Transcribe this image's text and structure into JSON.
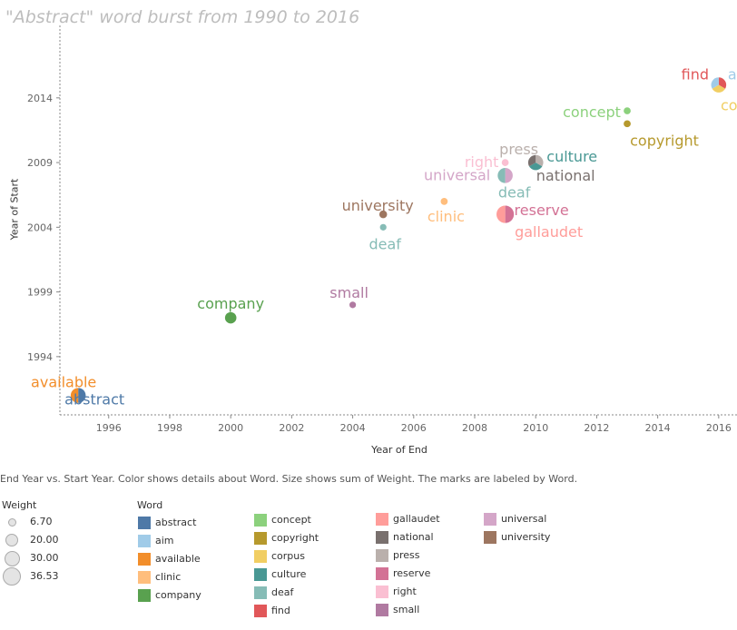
{
  "title": "\"Abstract\" word burst from 1990 to 2016",
  "caption": "End Year vs. Start Year.  Color shows details about Word.  Size shows sum of Weight.  The marks are labeled by Word.",
  "legend": {
    "weight_title": "Weight",
    "weight_items": [
      {
        "label": "6.70",
        "value": 6.7
      },
      {
        "label": "20.00",
        "value": 20.0
      },
      {
        "label": "30.00",
        "value": 30.0
      },
      {
        "label": "36.53",
        "value": 36.53
      }
    ],
    "word_title": "Word",
    "word_items": [
      {
        "label": "abstract",
        "color": "#4e79a7"
      },
      {
        "label": "aim",
        "color": "#a0cbe8"
      },
      {
        "label": "available",
        "color": "#f28e2b"
      },
      {
        "label": "clinic",
        "color": "#ffbe7d"
      },
      {
        "label": "company",
        "color": "#59a14f"
      },
      {
        "label": "concept",
        "color": "#8cd17d"
      },
      {
        "label": "copyright",
        "color": "#b6992d"
      },
      {
        "label": "corpus",
        "color": "#f1ce63"
      },
      {
        "label": "culture",
        "color": "#499894"
      },
      {
        "label": "deaf",
        "color": "#86bcb6"
      },
      {
        "label": "find",
        "color": "#e15759"
      },
      {
        "label": "gallaudet",
        "color": "#ff9d9a"
      },
      {
        "label": "national",
        "color": "#79706e"
      },
      {
        "label": "press",
        "color": "#bab0ac"
      },
      {
        "label": "reserve",
        "color": "#d37295"
      },
      {
        "label": "right",
        "color": "#fabfd2"
      },
      {
        "label": "small",
        "color": "#b07aa1"
      },
      {
        "label": "universal",
        "color": "#d4a6c8"
      },
      {
        "label": "university",
        "color": "#9d7660"
      }
    ]
  },
  "chart_data": {
    "type": "scatter",
    "title": "\"Abstract\" word burst from 1990 to 2016",
    "xlabel": "Year of End",
    "ylabel": "Year of Start",
    "xlim": [
      1994.4,
      2016.6
    ],
    "ylim": [
      1989.5,
      2019.6
    ],
    "xticks": [
      1996,
      1998,
      2000,
      2002,
      2004,
      2006,
      2008,
      2010,
      2012,
      2014,
      2016
    ],
    "yticks": [
      1994,
      1999,
      2004,
      2009,
      2014
    ],
    "points": [
      {
        "x": 1995,
        "y": 1991,
        "weight": 30,
        "words": [
          "abstract",
          "available"
        ],
        "labels": [
          {
            "text": "available",
            "color": "#f28e2b",
            "dx": -16,
            "dy": -9
          },
          {
            "text": "abstract",
            "color": "#4e79a7",
            "dx": 18,
            "dy": 10
          }
        ]
      },
      {
        "x": 2000,
        "y": 1997,
        "weight": 20,
        "words": [
          "company"
        ],
        "labels": [
          {
            "text": "company",
            "color": "#59a14f",
            "dx": 0,
            "dy": -10
          }
        ]
      },
      {
        "x": 2004,
        "y": 1998,
        "weight": 6.7,
        "words": [
          "small"
        ],
        "labels": [
          {
            "text": "small",
            "color": "#b07aa1",
            "dx": -4,
            "dy": -8
          }
        ]
      },
      {
        "x": 2005,
        "y": 2004,
        "weight": 6.7,
        "words": [
          "deaf"
        ],
        "labels": [
          {
            "text": "deaf",
            "color": "#86bcb6",
            "dx": 2,
            "dy": 24
          }
        ]
      },
      {
        "x": 2005,
        "y": 2005,
        "weight": 10,
        "words": [
          "university"
        ],
        "labels": [
          {
            "text": "university",
            "color": "#9d7660",
            "dx": -6,
            "dy": -4
          }
        ]
      },
      {
        "x": 2007,
        "y": 2006,
        "weight": 8,
        "words": [
          "clinic"
        ],
        "labels": [
          {
            "text": "clinic",
            "color": "#ffbe7d",
            "dx": 2,
            "dy": 22
          }
        ]
      },
      {
        "x": 2009,
        "y": 2005,
        "weight": 36.53,
        "words": [
          "reserve",
          "gallaudet"
        ],
        "labels": [
          {
            "text": "reserve",
            "color": "#d37295",
            "dx": 40,
            "dy": 1
          },
          {
            "text": "gallaudet",
            "color": "#ff9d9a",
            "dx": 48,
            "dy": 25
          }
        ]
      },
      {
        "x": 2009,
        "y": 2008,
        "weight": 30,
        "words": [
          "universal",
          "deaf"
        ],
        "labels": [
          {
            "text": "universal",
            "color": "#d4a6c8",
            "dx": -53,
            "dy": 5
          },
          {
            "text": "deaf",
            "color": "#86bcb6",
            "dx": 10,
            "dy": 24
          }
        ]
      },
      {
        "x": 2009,
        "y": 2009,
        "weight": 8,
        "words": [
          "right"
        ],
        "labels": [
          {
            "text": "right",
            "color": "#fabfd2",
            "dx": -26,
            "dy": 5
          },
          {
            "text": "press",
            "color": "#bab0ac",
            "dx": 15,
            "dy": -9
          }
        ]
      },
      {
        "x": 2010,
        "y": 2009,
        "weight": 30,
        "words": [
          "press",
          "culture",
          "national"
        ],
        "labels": [
          {
            "text": "culture",
            "color": "#499894",
            "dx": 40,
            "dy": -1
          },
          {
            "text": "national",
            "color": "#79706e",
            "dx": 33,
            "dy": 20
          }
        ]
      },
      {
        "x": 2013,
        "y": 2013,
        "weight": 8,
        "words": [
          "concept"
        ],
        "labels": [
          {
            "text": "concept",
            "color": "#8cd17d",
            "dx": -39,
            "dy": 7
          }
        ]
      },
      {
        "x": 2013,
        "y": 2012,
        "weight": 8,
        "words": [
          "copyright"
        ],
        "labels": [
          {
            "text": "copyright",
            "color": "#b6992d",
            "dx": 41,
            "dy": 24
          }
        ]
      },
      {
        "x": 2016,
        "y": 2015,
        "weight": 30,
        "words": [
          "find",
          "corpus",
          "aim"
        ],
        "labels": [
          {
            "text": "find",
            "color": "#e15759",
            "dx": -26,
            "dy": -6
          },
          {
            "text": "aim",
            "color": "#a0cbe8",
            "dx": 25,
            "dy": -6
          },
          {
            "text": "corpus",
            "color": "#f1ce63",
            "dx": 29,
            "dy": 28
          }
        ]
      }
    ]
  }
}
